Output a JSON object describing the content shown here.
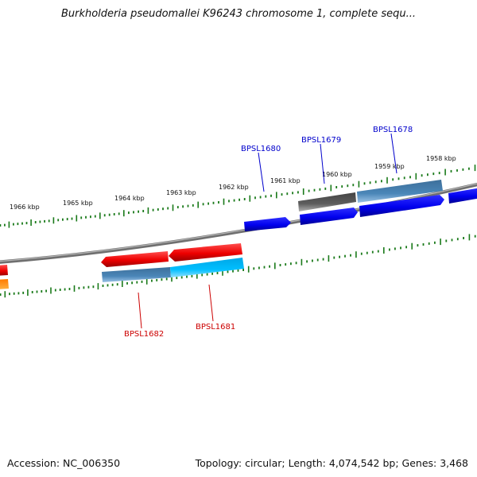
{
  "header": {
    "title": "Burkholderia pseudomallei K96243 chromosome 1, complete sequ..."
  },
  "footer": {
    "accession": "Accession: NC_006350",
    "stats": "Topology: circular; Length: 4,074,542 bp; Genes: 3,468"
  },
  "colors": {
    "backbone": "#8a8a8a",
    "tick": "#1a7a1a",
    "forward_gene": "#0000ee",
    "forward_label": "#0000cc",
    "reverse_gene": "#ee0000",
    "reverse_label": "#cc0000",
    "steel_blue": "#4682b4",
    "light_blue": "#00bfff",
    "dark_gray": "#5a5a5a",
    "orange": "#ff8c00"
  },
  "scale": {
    "outer_labels": [
      "1966 kbp",
      "1965 kbp",
      "1964 kbp",
      "1963 kbp",
      "1962 kbp",
      "1961 kbp",
      "1960 kbp",
      "1959 kbp",
      "1958 kbp"
    ]
  },
  "genes": {
    "forward": [
      {
        "id": "BPSL1680",
        "label": "BPSL1680",
        "strand": "+"
      },
      {
        "id": "BPSL1679",
        "label": "BPSL1679",
        "strand": "+"
      },
      {
        "id": "BPSL1678",
        "label": "BPSL1678",
        "strand": "+"
      }
    ],
    "reverse": [
      {
        "id": "BPSL1682",
        "label": "BPSL1682",
        "strand": "-"
      },
      {
        "id": "BPSL1681",
        "label": "BPSL1681",
        "strand": "-"
      }
    ]
  }
}
